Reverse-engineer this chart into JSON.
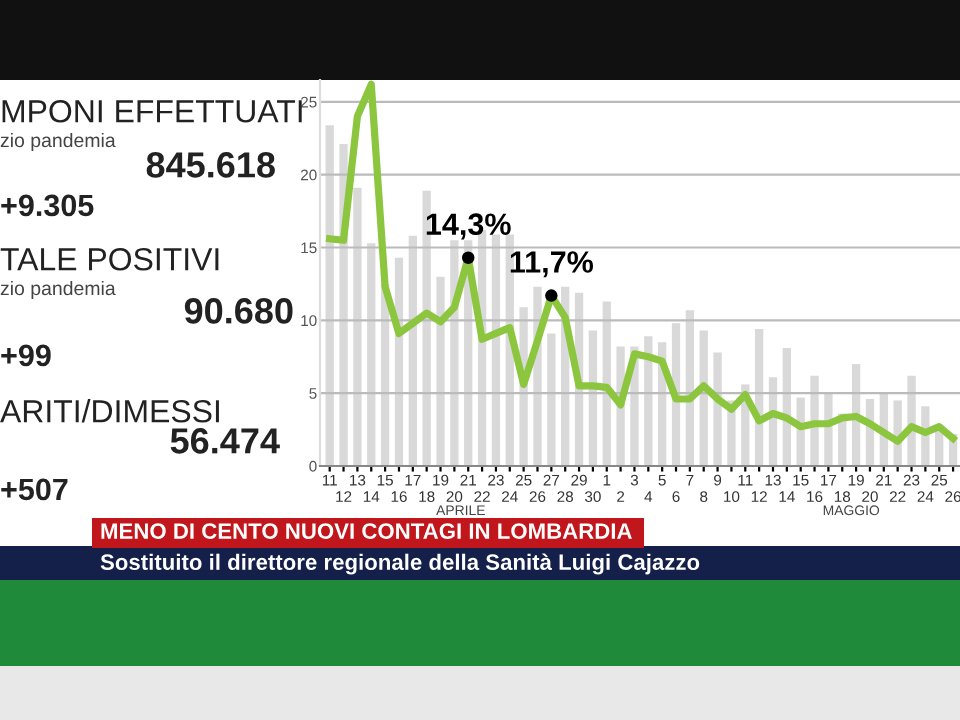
{
  "chart_data": [
    {
      "type": "other",
      "annotations": [
        "MPONI EFFETTUATI",
        "zio pandemia",
        "845.618",
        "+9.305",
        "TALE POSITIVI",
        "zio pandemia",
        "90.680",
        "+99",
        "ARITI/DIMESSI",
        "56.474",
        "+507",
        "MENO DI CENTO NUOVI CONTAGI IN LOMBARDIA",
        "Sostituito il direttore regionale della Sanità Luigi Cajazzo"
      ]
    },
    {
      "type": "bar",
      "categories": [
        "11",
        "12",
        "13",
        "14",
        "15",
        "16",
        "17",
        "18",
        "19",
        "20",
        "21",
        "22",
        "23",
        "24",
        "25",
        "26",
        "27",
        "28",
        "29",
        "30",
        "1",
        "2",
        "3",
        "4",
        "5",
        "6",
        "7",
        "8",
        "9",
        "10",
        "11",
        "12",
        "13",
        "14",
        "15",
        "16",
        "17",
        "18",
        "19",
        "20",
        "21",
        "22",
        "23",
        "24",
        "25",
        "26"
      ],
      "series": [
        {
          "type": "bar",
          "color": "#d9d9d9",
          "values": [
            23.4,
            22.1,
            19.1,
            15.3,
            12.5,
            14.3,
            15.8,
            18.9,
            13.0,
            15.5,
            15.5,
            16.2,
            15.9,
            15.9,
            10.9,
            12.3,
            9.1,
            12.3,
            11.9,
            9.3,
            11.3,
            8.2,
            8.2,
            8.9,
            8.5,
            9.8,
            10.7,
            9.3,
            7.8,
            4.5,
            5.6,
            9.4,
            6.1,
            8.1,
            4.7,
            6.2,
            5.0,
            3.6,
            7.0,
            4.6,
            5.0,
            4.5,
            6.2,
            4.1,
            2.7,
            2.2
          ]
        },
        {
          "type": "line",
          "color": "#8cc63f",
          "values": [
            15.6,
            15.5,
            24,
            26.2,
            12.3,
            9.1,
            9.8,
            10.5,
            9.9,
            10.9,
            14.3,
            8.7,
            9.1,
            9.5,
            5.6,
            8.6,
            11.7,
            10.2,
            5.5,
            5.5,
            5.4,
            4.2,
            7.7,
            7.5,
            7.2,
            4.6,
            4.6,
            5.5,
            4.6,
            3.9,
            4.9,
            3.1,
            3.6,
            3.3,
            2.7,
            2.9,
            2.9,
            3.3,
            3.4,
            2.9,
            2.3,
            1.7,
            2.7,
            2.3,
            2.7,
            1.9
          ],
          "value_labels": [
            null,
            null,
            null,
            null,
            null,
            null,
            null,
            null,
            null,
            null,
            "14,3%",
            null,
            null,
            null,
            null,
            null,
            "11,7%",
            null,
            null,
            null,
            null,
            null,
            null,
            null,
            null,
            null,
            null,
            null,
            null,
            null,
            null,
            null,
            null,
            null,
            null,
            null,
            null,
            null,
            null,
            null,
            null,
            null,
            null,
            null,
            null,
            null
          ]
        }
      ],
      "ylim": [
        0,
        26.5
      ],
      "yticks": [
        0,
        5,
        10,
        15,
        20,
        25
      ],
      "grid": "y",
      "annotations": [
        "APRILE",
        "MAGGIO"
      ]
    }
  ]
}
